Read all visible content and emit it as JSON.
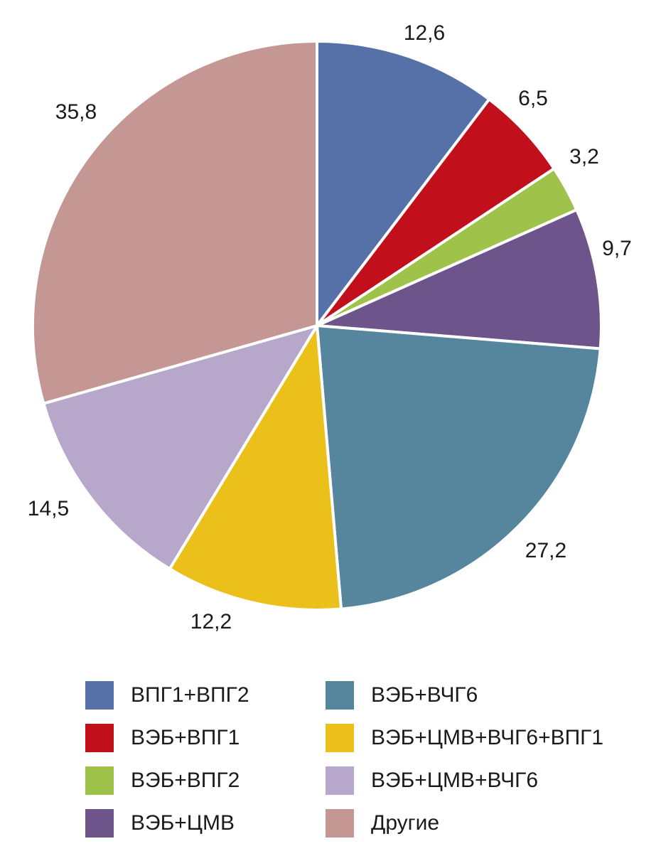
{
  "chart_data": {
    "type": "pie",
    "title": "",
    "value_labels": [
      "12,6",
      "6,5",
      "3,2",
      "9,7",
      "27,2",
      "12,2",
      "14,5",
      "35,8"
    ],
    "slices": [
      {
        "name": "ВПГ1+ВПГ2",
        "value": 12.6,
        "label": "12,6",
        "color": "#5670a8"
      },
      {
        "name": "ВЭБ+ВПГ1",
        "value": 6.5,
        "label": "6,5",
        "color": "#c10f1b"
      },
      {
        "name": "ВЭБ+ВПГ2",
        "value": 3.2,
        "label": "3,2",
        "color": "#9fc24a"
      },
      {
        "name": "ВЭБ+ЦМВ",
        "value": 9.7,
        "label": "9,7",
        "color": "#6d558c"
      },
      {
        "name": "ВЭБ+ВЧГ6",
        "value": 27.2,
        "label": "27,2",
        "color": "#55869e"
      },
      {
        "name": "ВЭБ+ЦМВ+ВЧГ6+ВПГ1",
        "value": 12.2,
        "label": "12,2",
        "color": "#ebc01a"
      },
      {
        "name": "ВЭБ+ЦМВ+ВЧГ6",
        "value": 14.5,
        "label": "14,5",
        "color": "#b7a8cb"
      },
      {
        "name": "Другие",
        "value": 35.8,
        "label": "35,8",
        "color": "#c49694"
      }
    ],
    "start": "12 o'clock",
    "direction": "clockwise",
    "legend_position": "bottom"
  },
  "legend": {
    "items": [
      {
        "label": "ВПГ1+ВПГ2",
        "color": "#5670a8"
      },
      {
        "label": "ВЭБ+ВЧГ6",
        "color": "#55869e"
      },
      {
        "label": "ВЭБ+ВПГ1",
        "color": "#c10f1b"
      },
      {
        "label": "ВЭБ+ЦМВ+ВЧГ6+ВПГ1",
        "color": "#ebc01a"
      },
      {
        "label": "ВЭБ+ВПГ2",
        "color": "#9fc24a"
      },
      {
        "label": "ВЭБ+ЦМВ+ВЧГ6",
        "color": "#b7a8cb"
      },
      {
        "label": "ВЭБ+ЦМВ",
        "color": "#6d558c"
      },
      {
        "label": "Другие",
        "color": "#c49694"
      }
    ]
  }
}
